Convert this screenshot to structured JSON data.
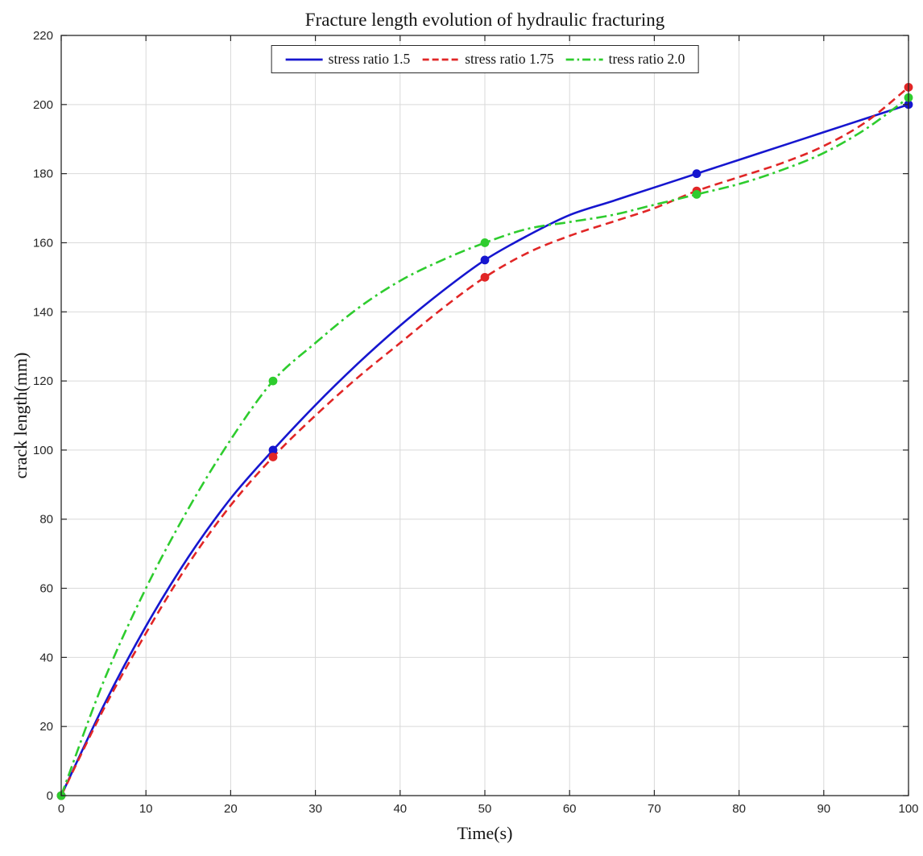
{
  "figure": {
    "background": "#ffffff"
  },
  "chart_data": {
    "type": "line",
    "title": "Fracture length evolution of hydraulic fracturing",
    "xlabel": "Time(s)",
    "ylabel": "crack length(mm)",
    "xlim": [
      0,
      100
    ],
    "ylim": [
      0,
      220
    ],
    "x_ticks": [
      0,
      10,
      20,
      30,
      40,
      50,
      60,
      70,
      80,
      90,
      100
    ],
    "y_ticks": [
      0,
      20,
      40,
      60,
      80,
      100,
      120,
      140,
      160,
      180,
      200,
      220
    ],
    "grid": true,
    "grid_color": "#d9d9d9",
    "axis_color": "#262626",
    "legend_position": "top-center",
    "series": [
      {
        "name": "stress ratio 1.5",
        "color": "#1616cf",
        "line_style": "solid",
        "marker": "circle",
        "marker_points": {
          "x": [
            0,
            25,
            50,
            75,
            100
          ],
          "y": [
            0,
            100,
            155,
            180,
            200
          ]
        },
        "curve": {
          "x": [
            0,
            5,
            10,
            15,
            20,
            25,
            30,
            35,
            40,
            45,
            50,
            55,
            60,
            65,
            70,
            75,
            80,
            85,
            90,
            95,
            100
          ],
          "y": [
            0,
            26,
            49,
            69,
            86,
            100,
            113,
            125,
            136,
            146,
            155,
            162,
            168,
            172,
            176,
            180,
            184,
            188,
            192,
            196,
            200
          ]
        }
      },
      {
        "name": "stress ratio 1.75",
        "color": "#e12626",
        "line_style": "dashed",
        "marker": "circle",
        "marker_points": {
          "x": [
            0,
            25,
            50,
            75,
            100
          ],
          "y": [
            0,
            98,
            150,
            175,
            205
          ]
        },
        "curve": {
          "x": [
            0,
            5,
            10,
            15,
            20,
            25,
            30,
            35,
            40,
            45,
            50,
            55,
            60,
            65,
            70,
            75,
            80,
            85,
            90,
            95,
            100
          ],
          "y": [
            0,
            25,
            47,
            67,
            84,
            98,
            110,
            121,
            131,
            141,
            150,
            157,
            162,
            166,
            170,
            175,
            179,
            183,
            188,
            195,
            205
          ]
        }
      },
      {
        "name": "tress ratio 2.0",
        "color": "#2ecc2e",
        "line_style": "dash-dot",
        "marker": "circle",
        "marker_points": {
          "x": [
            0,
            25,
            50,
            75,
            100
          ],
          "y": [
            0,
            120,
            160,
            174,
            202
          ]
        },
        "curve": {
          "x": [
            0,
            5,
            10,
            15,
            20,
            25,
            30,
            35,
            40,
            45,
            50,
            55,
            60,
            65,
            70,
            75,
            80,
            85,
            90,
            95,
            100
          ],
          "y": [
            0,
            33,
            60,
            83,
            103,
            120,
            131,
            141,
            149,
            155,
            160,
            164,
            166,
            168,
            171,
            174,
            177,
            181,
            186,
            193,
            202
          ]
        }
      }
    ]
  }
}
